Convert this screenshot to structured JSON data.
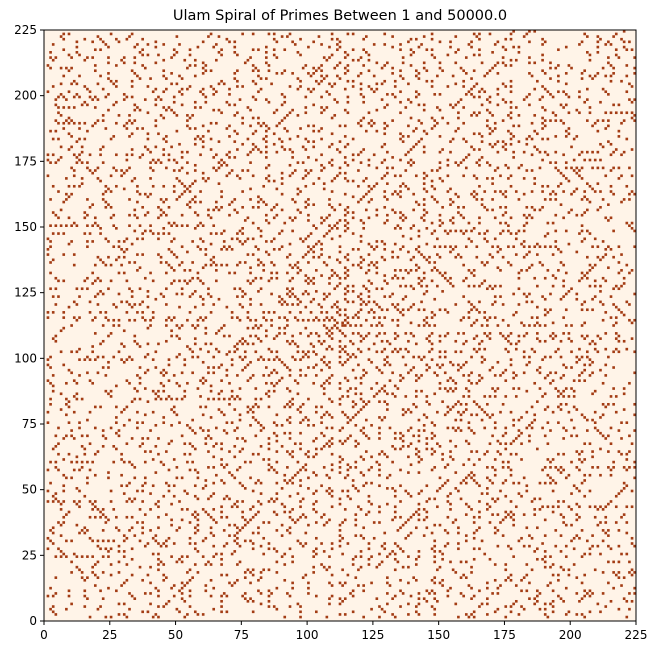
{
  "chart_data": {
    "type": "heatmap",
    "title": "Ulam Spiral of Primes Between 1 and 50000.0",
    "xlabel": "",
    "ylabel": "",
    "xlim": [
      0,
      225
    ],
    "ylim": [
      0,
      225
    ],
    "x_ticks": [
      0,
      25,
      50,
      75,
      100,
      125,
      150,
      175,
      200,
      225
    ],
    "y_ticks": [
      0,
      25,
      50,
      75,
      100,
      125,
      150,
      175,
      200,
      225
    ],
    "grid_size": 225,
    "number_range": [
      1,
      50000
    ],
    "encoding": "prime cells marked dark, non-prime cells light",
    "colors": {
      "background": "#fff4e8",
      "prime": "#a33c14",
      "frame": "#000000"
    },
    "grid": false
  }
}
